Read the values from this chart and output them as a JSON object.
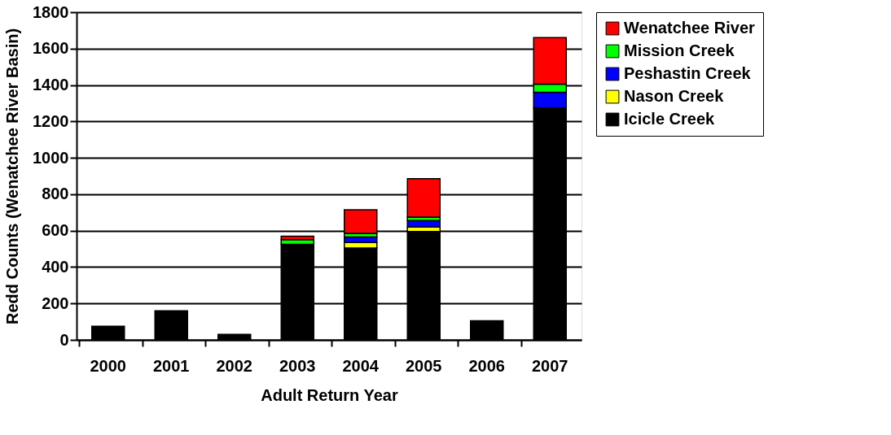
{
  "chart_data": {
    "type": "bar",
    "stacked": true,
    "xlabel": "Adult Return Year",
    "ylabel": "Redd Counts (Wenatchee River Basin)",
    "categories": [
      "2000",
      "2001",
      "2002",
      "2003",
      "2004",
      "2005",
      "2006",
      "2007"
    ],
    "series": [
      {
        "name": "Icicle Creek",
        "color": "#000000",
        "values": [
          75,
          160,
          30,
          525,
          505,
          595,
          105,
          1275
        ]
      },
      {
        "name": "Nason Creek",
        "color": "#ffff00",
        "values": [
          null,
          null,
          null,
          null,
          30,
          25,
          null,
          null
        ]
      },
      {
        "name": "Peshastin Creek",
        "color": "#0000ff",
        "values": [
          null,
          null,
          null,
          null,
          30,
          35,
          null,
          85
        ]
      },
      {
        "name": "Mission Creek",
        "color": "#00ff00",
        "values": [
          null,
          null,
          null,
          25,
          20,
          20,
          null,
          45
        ]
      },
      {
        "name": "Wenatchee River",
        "color": "#ff0000",
        "values": [
          null,
          null,
          null,
          20,
          130,
          210,
          null,
          255
        ]
      }
    ],
    "ylim": [
      0,
      1800
    ],
    "yticks": [
      0,
      200,
      400,
      600,
      800,
      1000,
      1200,
      1400,
      1600,
      1800
    ],
    "grid": "y",
    "legend": "right"
  }
}
